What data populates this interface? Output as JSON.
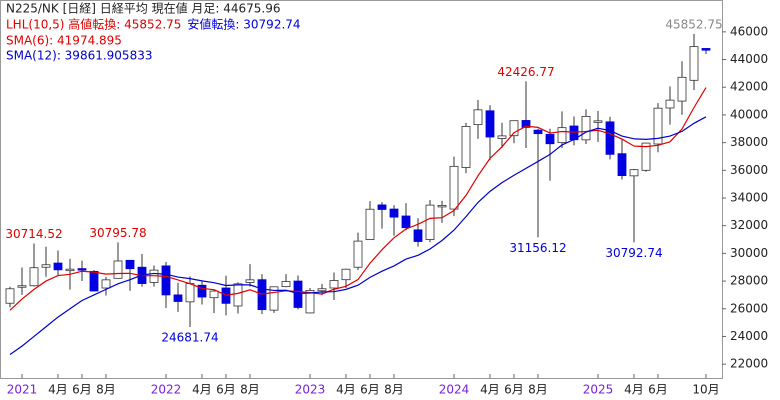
{
  "chart_data": {
    "type": "candlestick",
    "header": "N225/NK [日経] 日経平均  現在値 月足: 44675.96",
    "lhl": [
      {
        "text": "LHL(10,5) 高値転換: 45852.75",
        "color": "#e00000"
      },
      {
        "text": "安値転換: 30792.74",
        "color": "#0000dd"
      }
    ],
    "categories": [
      null,
      "2021",
      null,
      null,
      "4月",
      null,
      "6月",
      null,
      "8月",
      null,
      null,
      null,
      null,
      "2022",
      null,
      null,
      "4月",
      null,
      "6月",
      null,
      "8月",
      null,
      null,
      null,
      null,
      "2023",
      null,
      null,
      "4月",
      null,
      "6月",
      null,
      "8月",
      null,
      null,
      null,
      null,
      "2024",
      null,
      null,
      "4月",
      null,
      "6月",
      null,
      "8月",
      null,
      null,
      null,
      null,
      "2025",
      null,
      null,
      "4月",
      null,
      "6月",
      null,
      null,
      null,
      "10月"
    ],
    "open": [
      26400,
      27575,
      27663,
      29000,
      29300,
      28800,
      28900,
      28700,
      27500,
      28200,
      29500,
      29000,
      27900,
      29098,
      27000,
      26500,
      27700,
      26800,
      27500,
      26200,
      27900,
      28100,
      25900,
      27600,
      28000,
      25700,
      27300,
      27500,
      28100,
      29000,
      31000,
      33500,
      33200,
      32700,
      31700,
      31000,
      33400,
      33200,
      36200,
      39300,
      40300,
      38300,
      38500,
      39600,
      38900,
      38600,
      38000,
      39200,
      38200,
      39500,
      39500,
      37200,
      35600,
      36000,
      37900,
      40500,
      41000,
      42500,
      44800
    ],
    "high": [
      27600,
      28979,
      30714.52,
      30485,
      30208,
      29600,
      29480,
      28800,
      28300,
      30795.78,
      29500,
      29960,
      29121,
      29388,
      27880,
      28338,
      28000,
      27369,
      28389,
      27914,
      29222,
      28500,
      27600,
      28502,
      28400,
      27500,
      27800,
      28623,
      28900,
      31500,
      33772,
      33700,
      33488,
      33634,
      32533,
      33853,
      33800,
      36984,
      39426,
      41087,
      40697,
      39437,
      39336,
      42426.77,
      39000,
      39000,
      40257,
      39884,
      40398,
      40288,
      39866,
      38220,
      36100,
      38000,
      40852,
      42065,
      43876,
      45852.75,
      44800
    ],
    "low": [
      26100,
      27000,
      27600,
      28308,
      28419,
      27385,
      28010,
      27272,
      26954,
      28200,
      27293,
      27600,
      27600,
      26044,
      25775,
      24681.74,
      26304,
      25688,
      25520,
      25661,
      27600,
      25621,
      25700,
      27550,
      25953,
      25661,
      27000,
      26632,
      27500,
      28800,
      31000,
      31791,
      31275,
      31674,
      30487,
      30800,
      32205,
      32693,
      35800,
      38271,
      36733,
      37617,
      37950,
      37611,
      31156.12,
      35247,
      37600,
      37800,
      37900,
      38055,
      36791,
      35336,
      30792.74,
      35900,
      37300,
      39300,
      40000,
      41800,
      44400
    ],
    "close": [
      27444,
      27663,
      28966,
      29178,
      28812,
      28860,
      28791,
      27283,
      28089,
      29452,
      28892,
      27821,
      28791,
      27001,
      26526,
      27821,
      26847,
      27279,
      26393,
      27801,
      28091,
      25937,
      27587,
      27968,
      26094,
      27327,
      27445,
      28041,
      28856,
      30887,
      33189,
      33172,
      32619,
      31857,
      30858,
      33486,
      33464,
      36286,
      39166,
      40369,
      38405,
      38487,
      39583,
      39101,
      38647,
      37919,
      39081,
      38208,
      39894,
      39572,
      37155,
      35617,
      36045,
      37965,
      40487,
      41069,
      42718,
      44932,
      44675.96
    ],
    "up_color": "#ffffff",
    "down_color": "#0000e0",
    "wick_color": "#333333",
    "series": [
      {
        "name": "SMA(6): 41974.895",
        "color": "#e00000",
        "values": [
          25900,
          26700,
          27400,
          28000,
          28400,
          28487,
          28712,
          28648,
          28502,
          28548,
          28561,
          28388,
          28388,
          28341,
          28081,
          27809,
          27468,
          27378,
          26978,
          27111,
          27372,
          27058,
          27181,
          27296,
          27246,
          27167,
          27060,
          27410,
          27622,
          28108,
          29291,
          30265,
          31127,
          31763,
          32097,
          32530,
          32576,
          33095,
          34186,
          35605,
          36863,
          37696,
          38716,
          39185,
          39099,
          38690,
          38803,
          38757,
          38808,
          38887,
          38638,
          38255,
          37749,
          37708,
          37807,
          38056,
          38984,
          40536,
          41974.895
        ]
      },
      {
        "name": "SMA(12): 39861.905833",
        "color": "#0000cc",
        "values": [
          22700,
          23300,
          24000,
          24700,
          25400,
          26000,
          26600,
          27000,
          27400,
          27800,
          28100,
          28438,
          28550,
          28495,
          28291,
          28178,
          28015,
          27883,
          27683,
          27726,
          27726,
          27433,
          27325,
          27337,
          27112,
          27139,
          27216,
          27234,
          27402,
          27702,
          28269,
          28716,
          29094,
          29587,
          29859,
          30319,
          30933,
          31680,
          32657,
          33684,
          34480,
          35113,
          35646,
          36140,
          36642,
          37148,
          37833,
          38226,
          38762,
          39036,
          38868,
          38472,
          38276,
          38232,
          38308,
          38472,
          38811,
          39395,
          39861.905833
        ]
      }
    ],
    "annotations": [
      {
        "text": "30714.52",
        "color": "#e00000"
      },
      {
        "text": "30795.78",
        "color": "#e00000"
      },
      {
        "text": "24681.74",
        "color": "#0000dd"
      },
      {
        "text": "42426.77",
        "color": "#e00000"
      },
      {
        "text": "31156.12",
        "color": "#0000dd"
      },
      {
        "text": "30792.74",
        "color": "#0000dd"
      },
      {
        "text": "45852.75",
        "color": "#888888"
      }
    ],
    "ylim": [
      21000,
      48300
    ],
    "yticks": [
      22000,
      24000,
      26000,
      28000,
      30000,
      32000,
      34000,
      36000,
      38000,
      40000,
      42000,
      44000,
      46000
    ]
  }
}
